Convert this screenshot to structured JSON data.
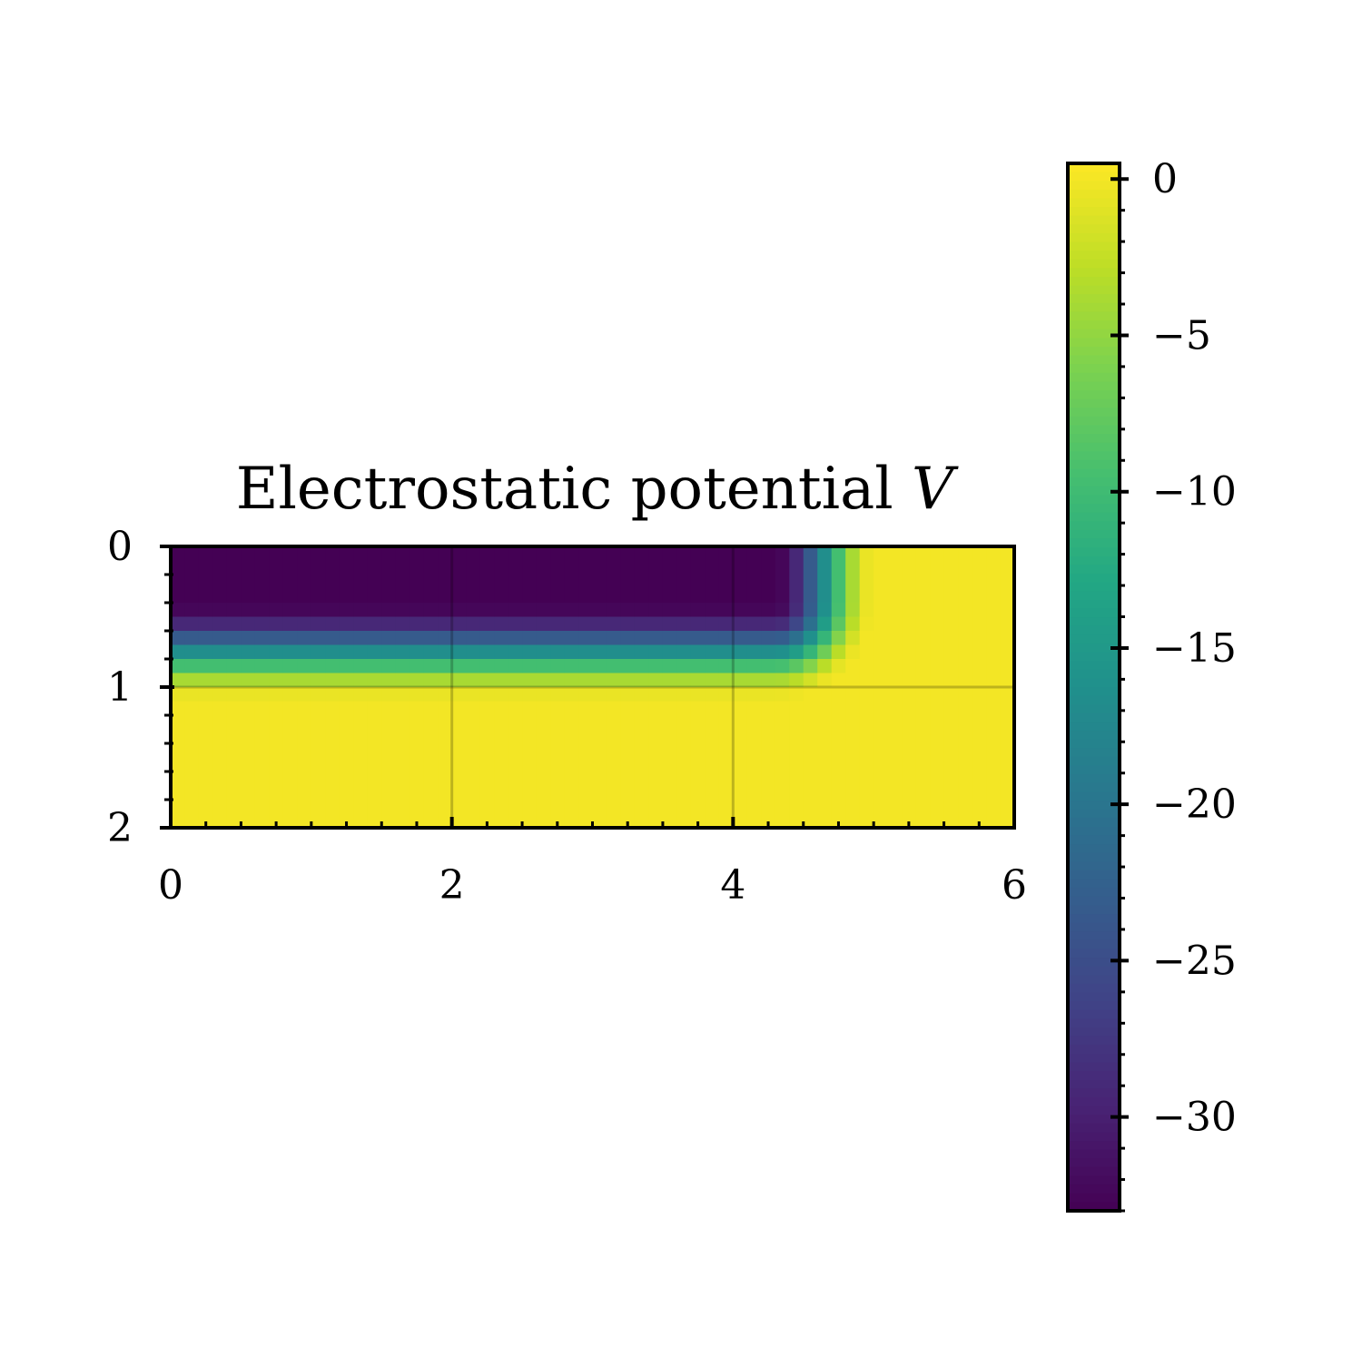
{
  "chart_data": {
    "type": "heatmap",
    "title": "Electrostatic potential",
    "title_symbol": "V",
    "xlabel": "",
    "ylabel": "",
    "xlim": [
      0,
      6
    ],
    "ylim": [
      2,
      0
    ],
    "x_ticks": [
      "0",
      "2",
      "4",
      "6"
    ],
    "y_ticks": [
      "0",
      "1",
      "2"
    ],
    "grid": true,
    "colormap": "viridis",
    "colorbar": {
      "vmin": -33,
      "vmax": 0.5,
      "ticks": [
        0,
        -5,
        -10,
        -15,
        -20,
        -25,
        -30
      ],
      "tick_labels": [
        "0",
        "−5",
        "−10",
        "−15",
        "−20",
        "−25",
        "−30"
      ]
    },
    "field": {
      "description_of_regions": "uniform V=-33 in 0<=x<=4.3, 0<=y<=0.4; smooth transition to V=0 by y~1.1 and x~5.0; V=0 elsewhere",
      "plateau_value": -33,
      "background_value": 0,
      "plateau_x_end": 4.3,
      "plateau_y_end": 0.4,
      "transition_width": 0.7
    }
  }
}
